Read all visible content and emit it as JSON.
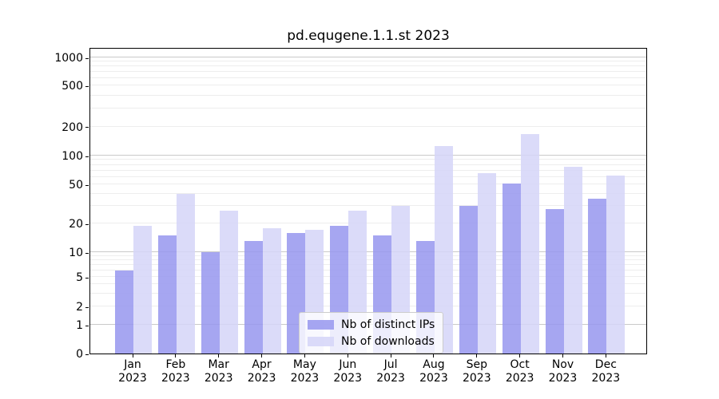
{
  "title": "pd.equgene.1.1.st 2023",
  "chart_data": {
    "type": "bar",
    "title": "pd.equgene.1.1.st 2023",
    "x_categories": [
      "Jan",
      "Feb",
      "Mar",
      "Apr",
      "May",
      "Jun",
      "Jul",
      "Aug",
      "Sep",
      "Oct",
      "Nov",
      "Dec"
    ],
    "x_year_suffix": "2023",
    "series": [
      {
        "name": "Nb of distinct IPs",
        "color": "rgba(150,150,238,0.85)",
        "values": [
          6,
          15,
          10,
          13,
          16,
          19,
          15,
          13,
          30,
          51,
          28,
          36
        ]
      },
      {
        "name": "Nb of downloads",
        "color": "rgba(213,213,248,0.85)",
        "values": [
          19,
          40,
          27,
          18,
          17,
          27,
          30,
          125,
          65,
          166,
          77,
          62
        ]
      }
    ],
    "y_ticks": [
      0,
      1,
      2,
      5,
      10,
      20,
      50,
      100,
      200,
      500,
      1000
    ],
    "y_scale": "log-like (linear 0-1, logarithmic above)",
    "ylim": [
      0,
      1300
    ],
    "xlabel": "",
    "ylabel": "",
    "grid": true,
    "legend_position": "lower center"
  }
}
